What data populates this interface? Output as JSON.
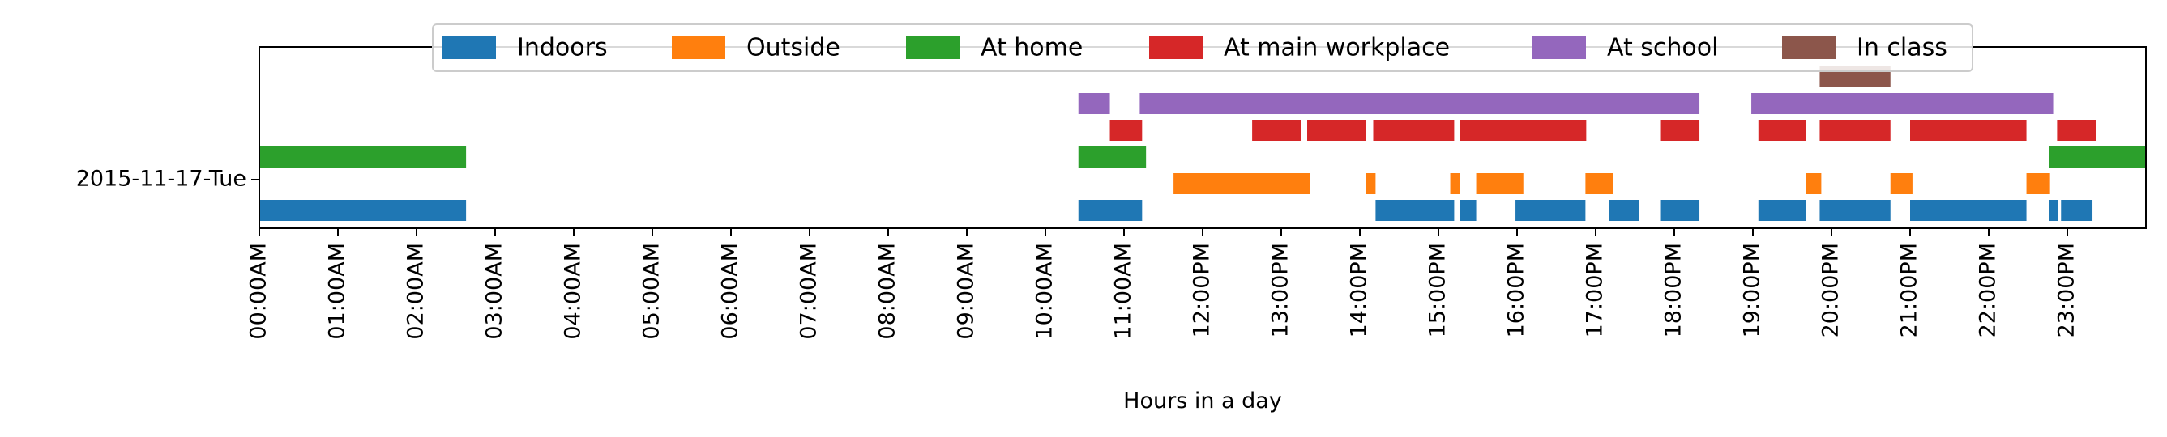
{
  "chart_data": {
    "type": "timeline",
    "xlabel": "Hours in a day",
    "xlim": [
      0,
      24
    ],
    "row_label": "2015-11-17-Tue",
    "x_tick_labels": [
      "00:00AM",
      "01:00AM",
      "02:00AM",
      "03:00AM",
      "04:00AM",
      "05:00AM",
      "06:00AM",
      "07:00AM",
      "08:00AM",
      "09:00AM",
      "10:00AM",
      "11:00AM",
      "12:00PM",
      "13:00PM",
      "14:00PM",
      "15:00PM",
      "16:00PM",
      "17:00PM",
      "18:00PM",
      "19:00PM",
      "20:00PM",
      "21:00PM",
      "22:00PM",
      "23:00PM"
    ],
    "legend_position": "top-center",
    "grid": false,
    "series": [
      {
        "name": "Indoors",
        "color": "#1f77b4",
        "intervals": [
          [
            0.0,
            2.63
          ],
          [
            10.42,
            11.23
          ],
          [
            14.2,
            15.2
          ],
          [
            15.27,
            15.48
          ],
          [
            15.98,
            16.87
          ],
          [
            17.17,
            17.55
          ],
          [
            17.82,
            18.32
          ],
          [
            19.07,
            19.68
          ],
          [
            19.85,
            20.75
          ],
          [
            21.0,
            22.48
          ],
          [
            22.77,
            22.88
          ],
          [
            22.92,
            23.32
          ]
        ]
      },
      {
        "name": "Outside",
        "color": "#ff7f0e",
        "intervals": [
          [
            11.63,
            13.37
          ],
          [
            14.08,
            14.2
          ],
          [
            15.15,
            15.27
          ],
          [
            15.48,
            16.08
          ],
          [
            16.87,
            17.22
          ],
          [
            19.68,
            19.87
          ],
          [
            20.75,
            21.03
          ],
          [
            22.48,
            22.78
          ]
        ]
      },
      {
        "name": "At home",
        "color": "#2ca02c",
        "intervals": [
          [
            0.0,
            2.63
          ],
          [
            10.42,
            11.28
          ],
          [
            22.77,
            24.0
          ]
        ]
      },
      {
        "name": "At main workplace",
        "color": "#d62728",
        "intervals": [
          [
            10.82,
            11.23
          ],
          [
            12.63,
            13.25
          ],
          [
            13.33,
            14.08
          ],
          [
            14.17,
            15.2
          ],
          [
            15.27,
            16.88
          ],
          [
            17.82,
            18.32
          ],
          [
            19.07,
            19.68
          ],
          [
            19.85,
            20.75
          ],
          [
            21.0,
            22.48
          ],
          [
            22.87,
            23.37
          ]
        ]
      },
      {
        "name": "At school",
        "color": "#9467bd",
        "intervals": [
          [
            10.42,
            10.82
          ],
          [
            11.2,
            18.32
          ],
          [
            18.98,
            22.82
          ]
        ]
      },
      {
        "name": "In class",
        "color": "#8c564b",
        "intervals": [
          [
            19.85,
            20.75
          ]
        ]
      }
    ]
  }
}
